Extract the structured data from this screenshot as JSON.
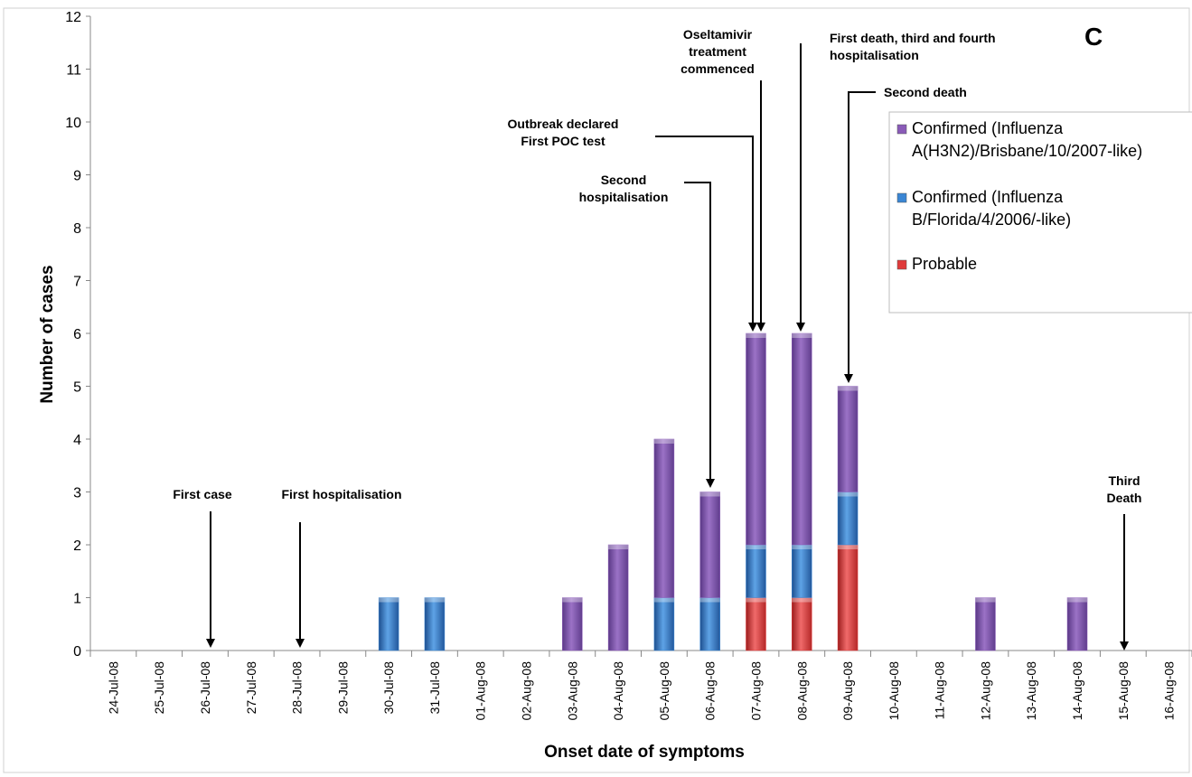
{
  "chart_data": {
    "type": "bar",
    "stacked": true,
    "panel_label": "C",
    "xlabel": "Onset date of symptoms",
    "ylabel": "Number of cases",
    "ylim": [
      0,
      12
    ],
    "yticks": [
      0,
      1,
      2,
      3,
      4,
      5,
      6,
      7,
      8,
      9,
      10,
      11,
      12
    ],
    "categories": [
      "24-Jul-08",
      "25-Jul-08",
      "26-Jul-08",
      "27-Jul-08",
      "28-Jul-08",
      "29-Jul-08",
      "30-Jul-08",
      "31-Jul-08",
      "01-Aug-08",
      "02-Aug-08",
      "03-Aug-08",
      "04-Aug-08",
      "05-Aug-08",
      "06-Aug-08",
      "07-Aug-08",
      "08-Aug-08",
      "09-Aug-08",
      "10-Aug-08",
      "11-Aug-08",
      "12-Aug-08",
      "13-Aug-08",
      "14-Aug-08",
      "15-Aug-08",
      "16-Aug-08"
    ],
    "series": [
      {
        "name": "Probable",
        "color": "#e03b3b",
        "values": [
          0,
          0,
          0,
          0,
          0,
          0,
          0,
          0,
          0,
          0,
          0,
          0,
          0,
          0,
          1,
          1,
          2,
          0,
          0,
          0,
          0,
          0,
          0,
          0
        ]
      },
      {
        "name": "Confirmed (Influenza B/Florida/4/2006/-like)",
        "color": "#3a86d4",
        "values": [
          0,
          0,
          0,
          0,
          0,
          0,
          1,
          1,
          0,
          0,
          0,
          0,
          1,
          1,
          1,
          1,
          1,
          0,
          0,
          0,
          0,
          0,
          0,
          0
        ]
      },
      {
        "name": "Confirmed (Influenza A(H3N2)/Brisbane/10/2007-like)",
        "color": "#8a5bb8",
        "values": [
          0,
          0,
          0,
          0,
          0,
          0,
          0,
          0,
          0,
          0,
          1,
          2,
          3,
          2,
          4,
          4,
          2,
          0,
          0,
          1,
          0,
          1,
          0,
          0
        ]
      }
    ],
    "legend": {
      "placement": "top-right",
      "entries": [
        {
          "lines": [
            "Confirmed (Influenza",
            "A(H3N2)/Brisbane/10/2007-like)"
          ],
          "color": "#8a5bb8"
        },
        {
          "lines": [
            "Confirmed (Influenza",
            "B/Florida/4/2006/-like)"
          ],
          "color": "#3a86d4"
        },
        {
          "lines": [
            "Probable"
          ],
          "color": "#e03b3b"
        }
      ]
    },
    "annotations": [
      {
        "category": "26-Jul-08",
        "lines": [
          "First case"
        ]
      },
      {
        "category": "28-Jul-08",
        "lines": [
          "First hospitalisation"
        ]
      },
      {
        "category": "06-Aug-08",
        "lines": [
          "Second",
          "hospitalisation"
        ]
      },
      {
        "category": "07-Aug-08",
        "lines": [
          "Outbreak declared",
          "First POC test"
        ]
      },
      {
        "category": "07-Aug-08",
        "lines": [
          "Oseltamivir",
          "treatment",
          "commenced"
        ]
      },
      {
        "category": "08-Aug-08",
        "lines": [
          "First death, third and fourth",
          "hospitalisation"
        ]
      },
      {
        "category": "09-Aug-08",
        "lines": [
          "Second death"
        ]
      },
      {
        "category": "15-Aug-08",
        "lines": [
          "Third",
          "Death"
        ]
      }
    ]
  }
}
